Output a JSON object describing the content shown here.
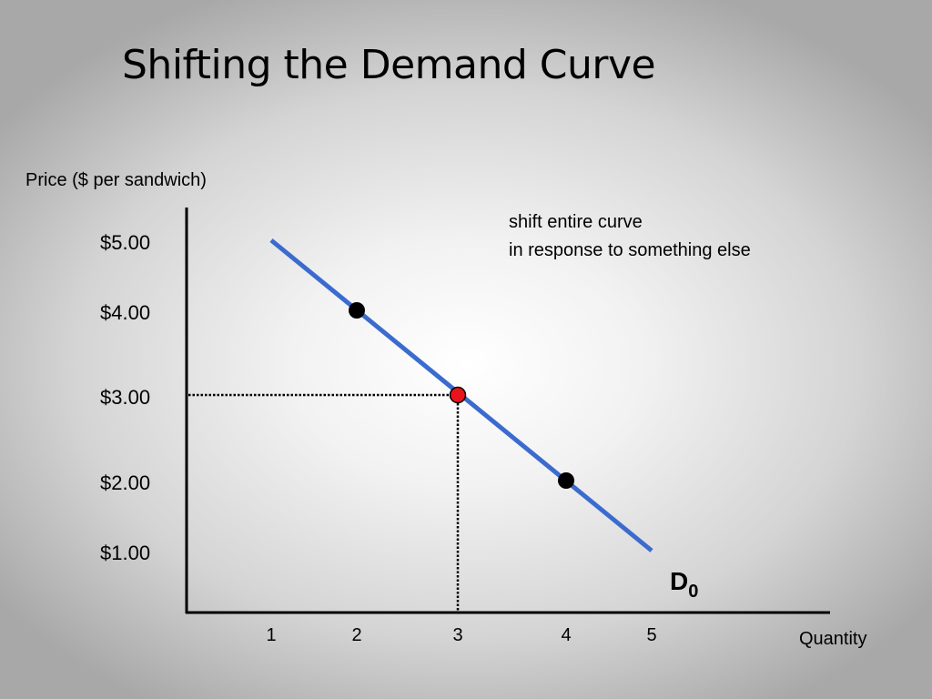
{
  "slide": {
    "title": "Shifting the Demand Curve",
    "annotation_lines": [
      "shift entire curve",
      "in response to something else"
    ]
  },
  "chart_data": {
    "type": "line",
    "title": "Shifting the Demand Curve",
    "xlabel": "Quantity",
    "ylabel": "Price ($ per sandwich)",
    "x_ticks": [
      1,
      2,
      3,
      4,
      5
    ],
    "x_tick_labels": [
      "1",
      "2",
      "3",
      "4",
      "5"
    ],
    "y_ticks": [
      5,
      4,
      3,
      2,
      1
    ],
    "y_tick_labels": [
      "$5.00",
      "$4.00",
      "$3.00",
      "$2.00",
      "$1.00"
    ],
    "grid": false,
    "series": [
      {
        "name": "D0",
        "label": "D",
        "label_subscript": "0",
        "color": "#3b6bcf",
        "x": [
          1,
          5
        ],
        "y": [
          5,
          1
        ]
      }
    ],
    "points": [
      {
        "x": 2,
        "y": 4,
        "color": "#000000"
      },
      {
        "x": 3,
        "y": 3,
        "color": "#e8141c",
        "highlighted": true
      },
      {
        "x": 4,
        "y": 2,
        "color": "#000000"
      }
    ],
    "reference_point": {
      "x": 3,
      "y": 3
    }
  }
}
